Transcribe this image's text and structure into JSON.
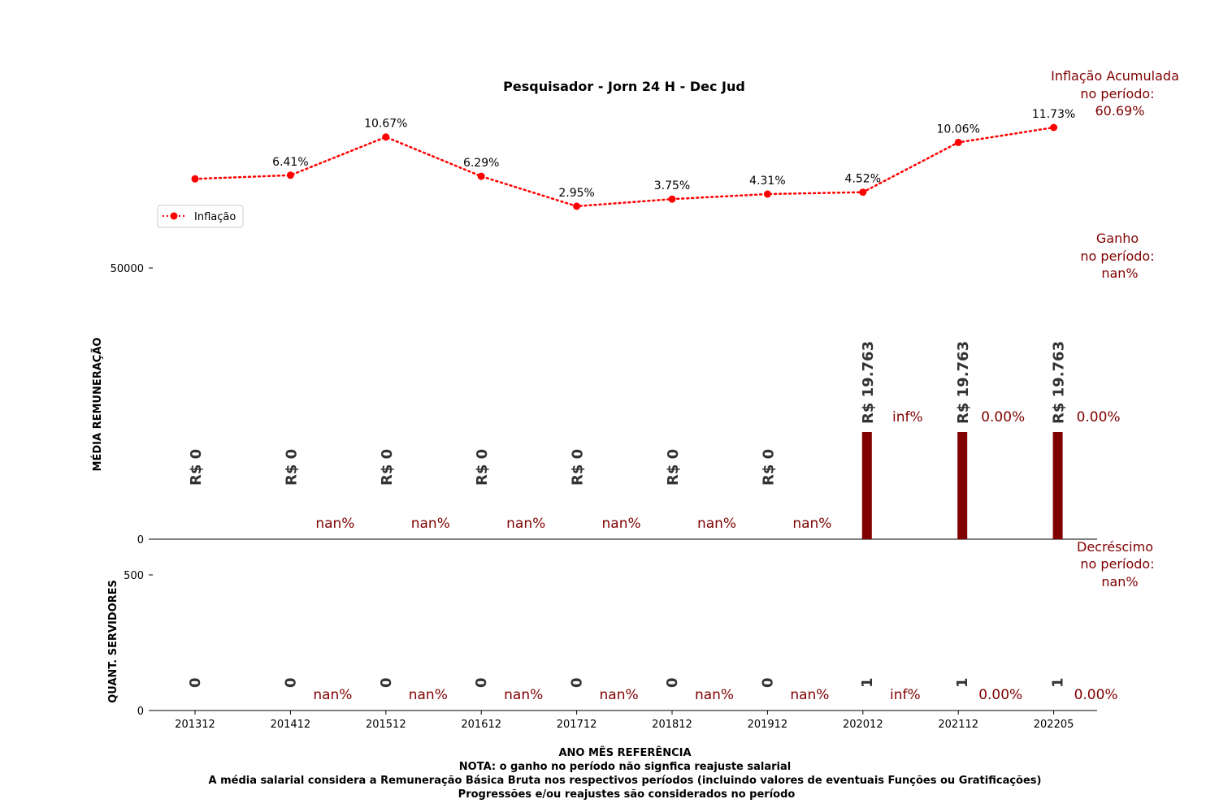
{
  "colors": {
    "line": "#ff0000",
    "bar": "#800000",
    "accent_text": "#800000",
    "value_text": "#333333"
  },
  "chart_data": {
    "type": "bar+line",
    "title": "Pesquisador - Jorn 24 H - Dec Jud",
    "categories": [
      "201312",
      "201412",
      "201512",
      "201612",
      "201712",
      "201812",
      "201912",
      "202012",
      "202112",
      "202205"
    ],
    "inflation": {
      "name": "Inflação",
      "values": [
        6.0,
        6.41,
        10.67,
        6.29,
        2.95,
        3.75,
        4.31,
        4.52,
        10.06,
        11.73
      ],
      "labels": [
        "",
        "6.41%",
        "10.67%",
        "6.29%",
        "2.95%",
        "3.75%",
        "4.31%",
        "4.52%",
        "10.06%",
        "11.73%"
      ],
      "style": "dotted line with circle markers"
    },
    "salary": {
      "ylabel": "MÉDIA REMUNERAÇÃO",
      "values": [
        0,
        0,
        0,
        0,
        0,
        0,
        0,
        19763,
        19763,
        19763
      ],
      "labels": [
        "R$ 0",
        "R$ 0",
        "R$ 0",
        "R$ 0",
        "R$ 0",
        "R$ 0",
        "R$ 0",
        "R$ 19.763",
        "R$ 19.763",
        "R$ 19.763"
      ],
      "pct_change": [
        "nan%",
        "nan%",
        "nan%",
        "nan%",
        "nan%",
        "nan%",
        "inf%",
        "0.00%",
        "0.00%"
      ],
      "ylim": [
        0,
        50000
      ],
      "yticks": [
        "0",
        "50000"
      ]
    },
    "servers": {
      "ylabel": "QUANT. SERVIDORES",
      "values": [
        0,
        0,
        0,
        0,
        0,
        0,
        0,
        1,
        1,
        1
      ],
      "labels": [
        "0",
        "0",
        "0",
        "0",
        "0",
        "0",
        "0",
        "1",
        "1",
        "1"
      ],
      "pct_change": [
        "nan%",
        "nan%",
        "nan%",
        "nan%",
        "nan%",
        "nan%",
        "inf%",
        "0.00%",
        "0.00%"
      ],
      "ylim": [
        0,
        500
      ],
      "yticks": [
        "0",
        "500"
      ]
    },
    "xlabel": "ANO MÊS REFERÊNCIA",
    "legend": {
      "label": "Inflação",
      "placement": "left"
    },
    "side_notes": {
      "inflation": [
        "Inflação Acumulada",
        "no período:",
        "60.69%"
      ],
      "gain": [
        "Ganho",
        "no período:",
        "nan%"
      ],
      "decrease": [
        "Decréscimo",
        "no período:",
        "nan%"
      ]
    },
    "footer": [
      "NOTA: o ganho no período não signfica reajuste salarial",
      "A média salarial considera a Remuneração Básica Bruta nos respectivos períodos (incluindo valores de eventuais Funções ou Gratificações)",
      "Progressões e/ou reajustes são considerados no período"
    ]
  }
}
